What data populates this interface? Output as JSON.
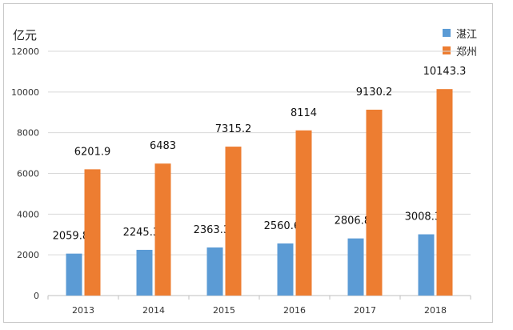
{
  "chart_data": {
    "type": "bar",
    "title": "",
    "ylabel": "亿元",
    "xlabel": "",
    "categories": [
      "2013",
      "2014",
      "2015",
      "2016",
      "2017",
      "2018"
    ],
    "ylim": [
      0,
      12000
    ],
    "yticks": [
      0,
      2000,
      4000,
      6000,
      8000,
      10000,
      12000
    ],
    "grid": true,
    "legend_position": "top-right",
    "series": [
      {
        "name": "湛江",
        "color": "#5b9bd5",
        "values": [
          2059.87,
          2245.35,
          2363.31,
          2560.69,
          2806.88,
          3008.39
        ],
        "labels": [
          "2059.87",
          "2245.35",
          "2363.31",
          "2560.69",
          "2806.88",
          "3008.39"
        ]
      },
      {
        "name": "郑州",
        "color": "#ed7d31",
        "values": [
          6201.9,
          6483,
          7315.2,
          8114,
          9130.2,
          10143.3
        ],
        "labels": [
          "6201.9",
          "6483",
          "7315.2",
          "8114",
          "9130.2",
          "10143.3"
        ]
      }
    ]
  }
}
